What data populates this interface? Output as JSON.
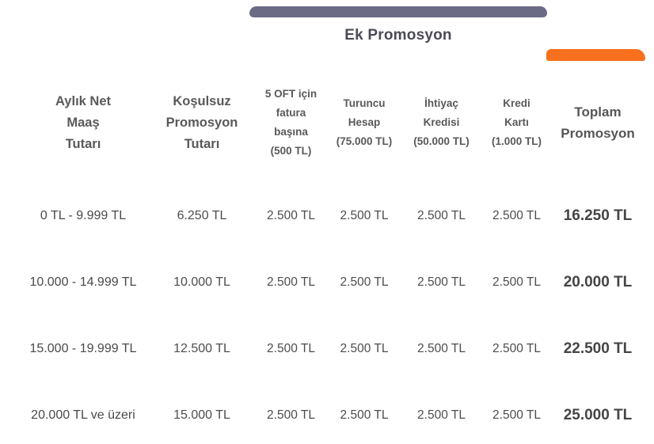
{
  "title": "Ek Promosyon",
  "colors": {
    "slate_tab_bar": "#6B6B85",
    "orange_tab_bar": "#F8701E",
    "header_text": "#595959",
    "cell_text": "#4D4D4D",
    "total_text": "#454545",
    "title_text": "#4B4B54",
    "background": "#FFFFFF"
  },
  "chart_data": {
    "type": "table",
    "title": "Ek Promosyon",
    "note_spanned_columns": "Ek Promosyon bar spans columns 3-6; orange bar marks Toplam Promosyon column",
    "columns": [
      {
        "label": "Aylık Net\nMaaş\nTutarı"
      },
      {
        "label": "Koşulsuz\nPromosyon\nTutarı"
      },
      {
        "label": "5 OFT için\nfatura\nbaşına\n(500 TL)"
      },
      {
        "label": "Turuncu\nHesap\n(75.000 TL)"
      },
      {
        "label": "İhtiyaç\nKredisi\n(50.000 TL)"
      },
      {
        "label": "Kredi\nKartı\n(1.000 TL)"
      },
      {
        "label": "Toplam\nPromosyon"
      }
    ],
    "rows": [
      [
        "0 TL - 9.999 TL",
        "6.250 TL",
        "2.500 TL",
        "2.500 TL",
        "2.500 TL",
        "2.500 TL",
        "16.250 TL"
      ],
      [
        "10.000 - 14.999 TL",
        "10.000 TL",
        "2.500 TL",
        "2.500 TL",
        "2.500 TL",
        "2.500 TL",
        "20.000 TL"
      ],
      [
        "15.000 - 19.999 TL",
        "12.500 TL",
        "2.500 TL",
        "2.500 TL",
        "2.500 TL",
        "2.500 TL",
        "22.500 TL"
      ],
      [
        "20.000 TL ve üzeri",
        "15.000 TL",
        "2.500 TL",
        "2.500 TL",
        "2.500 TL",
        "2.500 TL",
        "25.000 TL"
      ]
    ]
  }
}
